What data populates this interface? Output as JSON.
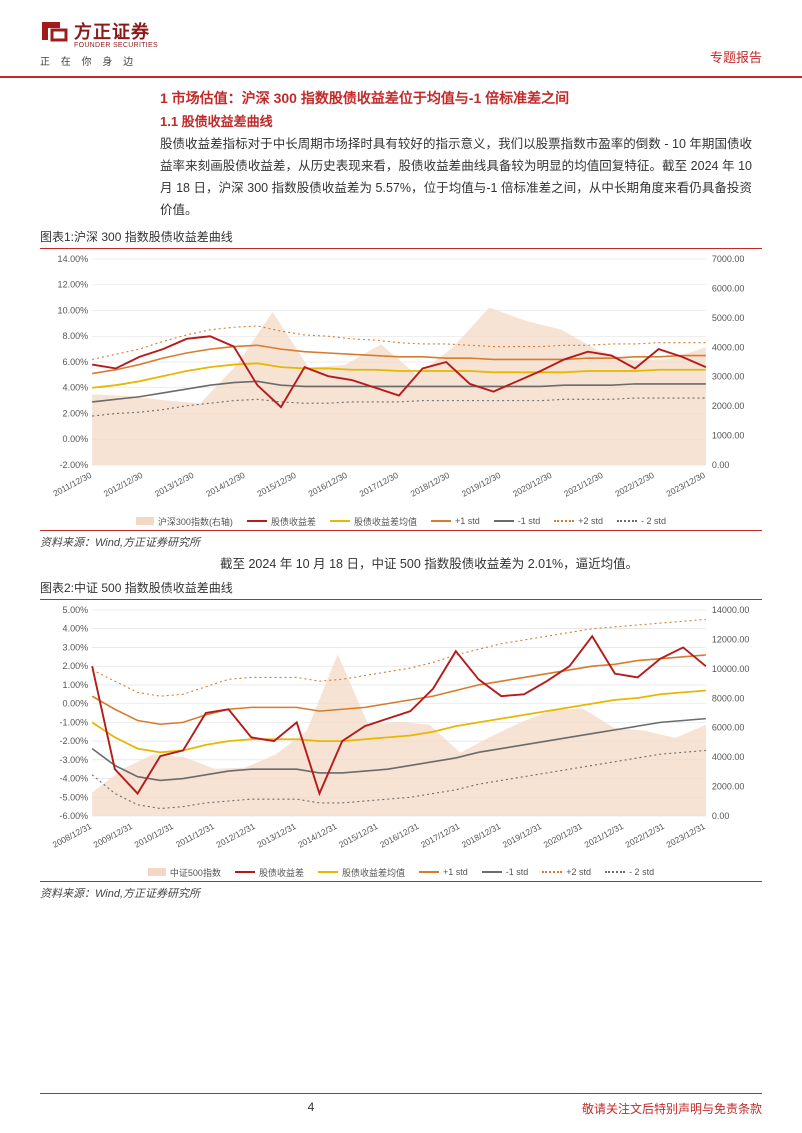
{
  "header": {
    "logo_cn": "方正证券",
    "logo_en": "FOUNDER SECURITIES",
    "tagline": "正 在 你 身 边",
    "report_type": "专题报告",
    "logo_color": "#a01c1c"
  },
  "section": {
    "h1": "1 市场估值：沪深 300 指数股债收益差位于均值与-1 倍标准差之间",
    "h2": "1.1 股债收益差曲线",
    "para1": "股债收益差指标对于中长周期市场择时具有较好的指示意义，我们以股票指数市盈率的倒数 - 10 年期国债收益率来刻画股债收益差，从历史表现来看，股债收益差曲线具备较为明显的均值回复特征。截至 2024 年 10 月 18 日，沪深 300 指数股债收益差为 5.57%，位于均值与-1 倍标准差之间，从中长期角度来看仍具备投资价值。"
  },
  "chart1": {
    "title": "图表1:沪深 300 指数股债收益差曲线",
    "source": "资料来源：Wind,方正证券研究所",
    "left_ticks": [
      "14.00%",
      "12.00%",
      "10.00%",
      "8.00%",
      "6.00%",
      "4.00%",
      "2.00%",
      "0.00%",
      "-2.00%"
    ],
    "right_ticks": [
      "7000.00",
      "6000.00",
      "5000.00",
      "4000.00",
      "3000.00",
      "2000.00",
      "1000.00",
      "0.00"
    ],
    "x_ticks": [
      "2011/12/30",
      "2012/12/30",
      "2013/12/30",
      "2014/12/30",
      "2015/12/30",
      "2016/12/30",
      "2017/12/30",
      "2018/12/30",
      "2019/12/30",
      "2020/12/30",
      "2021/12/30",
      "2022/12/30",
      "2023/12/30"
    ],
    "legend": {
      "area": "沪深300指数(右轴)",
      "spread": "股债收益差",
      "mean": "股债收益差均值",
      "p1": "+1 std",
      "m1": "-1 std",
      "p2": "+2 std",
      "m2": "- 2 std"
    },
    "colors": {
      "area_fill": "#f3d9c5",
      "spread": "#b51b1b",
      "mean": "#e6b800",
      "p1": "#d97b2e",
      "m1": "#6b6b6b",
      "p2": "#d97b2e",
      "m2": "#6b6b6b",
      "grid": "#dcdcdc",
      "axis_text": "#555555"
    },
    "left_range": [
      -2,
      14
    ],
    "right_range": [
      0,
      7000
    ],
    "area_vals": [
      2400,
      2350,
      2200,
      2100,
      3400,
      5200,
      3300,
      3400,
      4100,
      3050,
      4000,
      5350,
      4900,
      4600,
      3900,
      3550,
      3600,
      4000
    ],
    "spread_vals": [
      5.8,
      5.5,
      6.4,
      7.0,
      7.8,
      8.0,
      7.2,
      4.2,
      2.5,
      5.6,
      4.9,
      4.6,
      4.0,
      3.4,
      5.5,
      6.0,
      4.3,
      3.7,
      4.5,
      5.3,
      6.2,
      6.8,
      6.5,
      5.5,
      7.0,
      6.4,
      5.6
    ],
    "mean_vals": [
      4.0,
      4.2,
      4.5,
      4.9,
      5.3,
      5.6,
      5.8,
      5.9,
      5.6,
      5.5,
      5.5,
      5.4,
      5.4,
      5.3,
      5.3,
      5.3,
      5.3,
      5.2,
      5.2,
      5.2,
      5.2,
      5.3,
      5.3,
      5.3,
      5.4,
      5.4,
      5.4
    ],
    "p1_vals": [
      5.1,
      5.4,
      5.8,
      6.3,
      6.7,
      7.0,
      7.2,
      7.3,
      7.0,
      6.8,
      6.7,
      6.6,
      6.5,
      6.4,
      6.4,
      6.3,
      6.3,
      6.2,
      6.2,
      6.2,
      6.2,
      6.3,
      6.3,
      6.4,
      6.4,
      6.5,
      6.5
    ],
    "m1_vals": [
      2.9,
      3.1,
      3.3,
      3.6,
      3.9,
      4.2,
      4.4,
      4.5,
      4.2,
      4.1,
      4.1,
      4.1,
      4.1,
      4.1,
      4.1,
      4.1,
      4.1,
      4.1,
      4.1,
      4.1,
      4.2,
      4.2,
      4.2,
      4.3,
      4.3,
      4.3,
      4.3
    ],
    "p2_vals": [
      6.2,
      6.6,
      7.0,
      7.6,
      8.1,
      8.5,
      8.7,
      8.8,
      8.4,
      8.1,
      8.0,
      7.8,
      7.7,
      7.5,
      7.4,
      7.4,
      7.3,
      7.2,
      7.2,
      7.2,
      7.3,
      7.3,
      7.4,
      7.4,
      7.5,
      7.5,
      7.5
    ],
    "m2_vals": [
      1.8,
      2.0,
      2.1,
      2.3,
      2.6,
      2.8,
      3.0,
      3.1,
      2.9,
      2.8,
      2.8,
      2.9,
      2.9,
      2.9,
      3.0,
      3.0,
      3.0,
      3.0,
      3.0,
      3.0,
      3.1,
      3.1,
      3.1,
      3.2,
      3.2,
      3.2,
      3.2
    ]
  },
  "intertext": "截至 2024 年 10 月 18 日，中证 500 指数股债收益差为 2.01%，逼近均值。",
  "chart2": {
    "title": "图表2:中证 500 指数股债收益差曲线",
    "source": "资料来源：Wind,方正证券研究所",
    "left_ticks": [
      "5.00%",
      "4.00%",
      "3.00%",
      "2.00%",
      "1.00%",
      "0.00%",
      "-1.00%",
      "-2.00%",
      "-3.00%",
      "-4.00%",
      "-5.00%",
      "-6.00%"
    ],
    "right_ticks": [
      "14000.00",
      "12000.00",
      "10000.00",
      "8000.00",
      "6000.00",
      "4000.00",
      "2000.00",
      "0.00"
    ],
    "x_ticks": [
      "2008/12/31",
      "2009/12/31",
      "2010/12/31",
      "2011/12/31",
      "2012/12/31",
      "2013/12/31",
      "2014/12/31",
      "2015/12/31",
      "2016/12/31",
      "2017/12/31",
      "2018/12/31",
      "2019/12/31",
      "2020/12/31",
      "2021/12/31",
      "2022/12/31",
      "2023/12/31"
    ],
    "legend": {
      "area": "中证500指数",
      "spread": "股债收益差",
      "mean": "股债收益差均值",
      "p1": "+1 std",
      "m1": "-1 std",
      "p2": "+2 std",
      "m2": "- 2 std"
    },
    "colors": {
      "area_fill": "#f3d9c5",
      "spread": "#b51b1b",
      "mean": "#e6b800",
      "p1": "#d97b2e",
      "m1": "#6b6b6b",
      "p2": "#d97b2e",
      "m2": "#6b6b6b",
      "grid": "#dcdcdc",
      "axis_text": "#555555"
    },
    "left_range": [
      -6,
      5
    ],
    "right_range": [
      0,
      14000
    ],
    "area_vals": [
      1600,
      3200,
      4200,
      4000,
      3200,
      3300,
      4200,
      5800,
      11000,
      6200,
      6400,
      6200,
      4300,
      5400,
      6400,
      7200,
      7300,
      6000,
      5800,
      5300,
      6200
    ],
    "spread_vals": [
      2.0,
      -3.5,
      -4.8,
      -2.8,
      -2.5,
      -0.5,
      -0.3,
      -1.8,
      -2.0,
      -1.0,
      -4.8,
      -2.0,
      -1.2,
      -0.8,
      -0.4,
      0.8,
      2.8,
      1.3,
      0.4,
      0.5,
      1.2,
      2.0,
      3.6,
      1.6,
      1.4,
      2.4,
      3.0,
      2.0
    ],
    "mean_vals": [
      -1.0,
      -1.8,
      -2.4,
      -2.6,
      -2.5,
      -2.2,
      -2.0,
      -1.9,
      -1.9,
      -1.9,
      -2.0,
      -2.0,
      -1.9,
      -1.8,
      -1.7,
      -1.5,
      -1.2,
      -1.0,
      -0.8,
      -0.6,
      -0.4,
      -0.2,
      0.0,
      0.2,
      0.3,
      0.5,
      0.6,
      0.7
    ],
    "p1_vals": [
      0.4,
      -0.3,
      -0.9,
      -1.1,
      -1.0,
      -0.6,
      -0.3,
      -0.2,
      -0.2,
      -0.2,
      -0.4,
      -0.3,
      -0.2,
      0.0,
      0.2,
      0.4,
      0.7,
      1.0,
      1.2,
      1.4,
      1.6,
      1.8,
      2.0,
      2.1,
      2.3,
      2.4,
      2.5,
      2.6
    ],
    "m1_vals": [
      -2.4,
      -3.3,
      -3.9,
      -4.1,
      -4.0,
      -3.8,
      -3.6,
      -3.5,
      -3.5,
      -3.5,
      -3.7,
      -3.7,
      -3.6,
      -3.5,
      -3.3,
      -3.1,
      -2.9,
      -2.6,
      -2.4,
      -2.2,
      -2.0,
      -1.8,
      -1.6,
      -1.4,
      -1.2,
      -1.0,
      -0.9,
      -0.8
    ],
    "p2_vals": [
      1.8,
      1.2,
      0.6,
      0.4,
      0.5,
      0.9,
      1.3,
      1.4,
      1.4,
      1.4,
      1.2,
      1.3,
      1.5,
      1.7,
      1.9,
      2.2,
      2.6,
      2.9,
      3.2,
      3.4,
      3.6,
      3.8,
      4.0,
      4.1,
      4.2,
      4.3,
      4.4,
      4.5
    ],
    "m2_vals": [
      -3.8,
      -4.8,
      -5.4,
      -5.6,
      -5.5,
      -5.3,
      -5.2,
      -5.1,
      -5.1,
      -5.1,
      -5.3,
      -5.3,
      -5.2,
      -5.1,
      -5.0,
      -4.8,
      -4.6,
      -4.3,
      -4.1,
      -3.9,
      -3.7,
      -3.5,
      -3.3,
      -3.1,
      -2.9,
      -2.7,
      -2.6,
      -2.5
    ]
  },
  "footer": {
    "page": "4",
    "disclaimer": "敬请关注文后特别声明与免责条款"
  }
}
